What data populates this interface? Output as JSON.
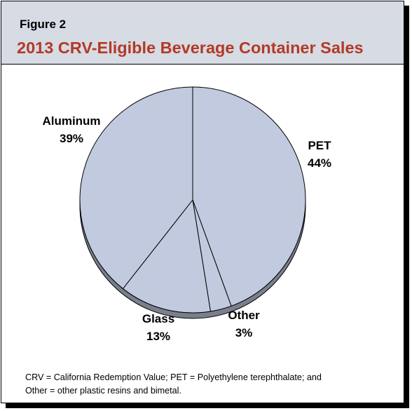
{
  "figure_label": "Figure 2",
  "title": "2013 CRV-Eligible Beverage Container Sales",
  "footnote_line1": "CRV = California Redemption Value; PET = Polyethylene terephthalate; and",
  "footnote_line2": "Other = other plastic resins and bimetal.",
  "colors": {
    "slice_fill": "#c2cadf",
    "slice_edge": "#000000",
    "pie_side": "#7a7f8c",
    "header_bg": "#d7dbe4",
    "title": "#b23a26"
  },
  "chart_data": {
    "type": "pie",
    "title": "2013 CRV-Eligible Beverage Container Sales",
    "slices": [
      {
        "name": "PET",
        "value": 44,
        "label": "44%"
      },
      {
        "name": "Other",
        "value": 3,
        "label": "3%"
      },
      {
        "name": "Glass",
        "value": 13,
        "label": "13%"
      },
      {
        "name": "Aluminum",
        "value": 39,
        "label": "39%"
      }
    ],
    "start_angle": "12 o'clock",
    "direction": "clockwise",
    "legend": "none"
  }
}
